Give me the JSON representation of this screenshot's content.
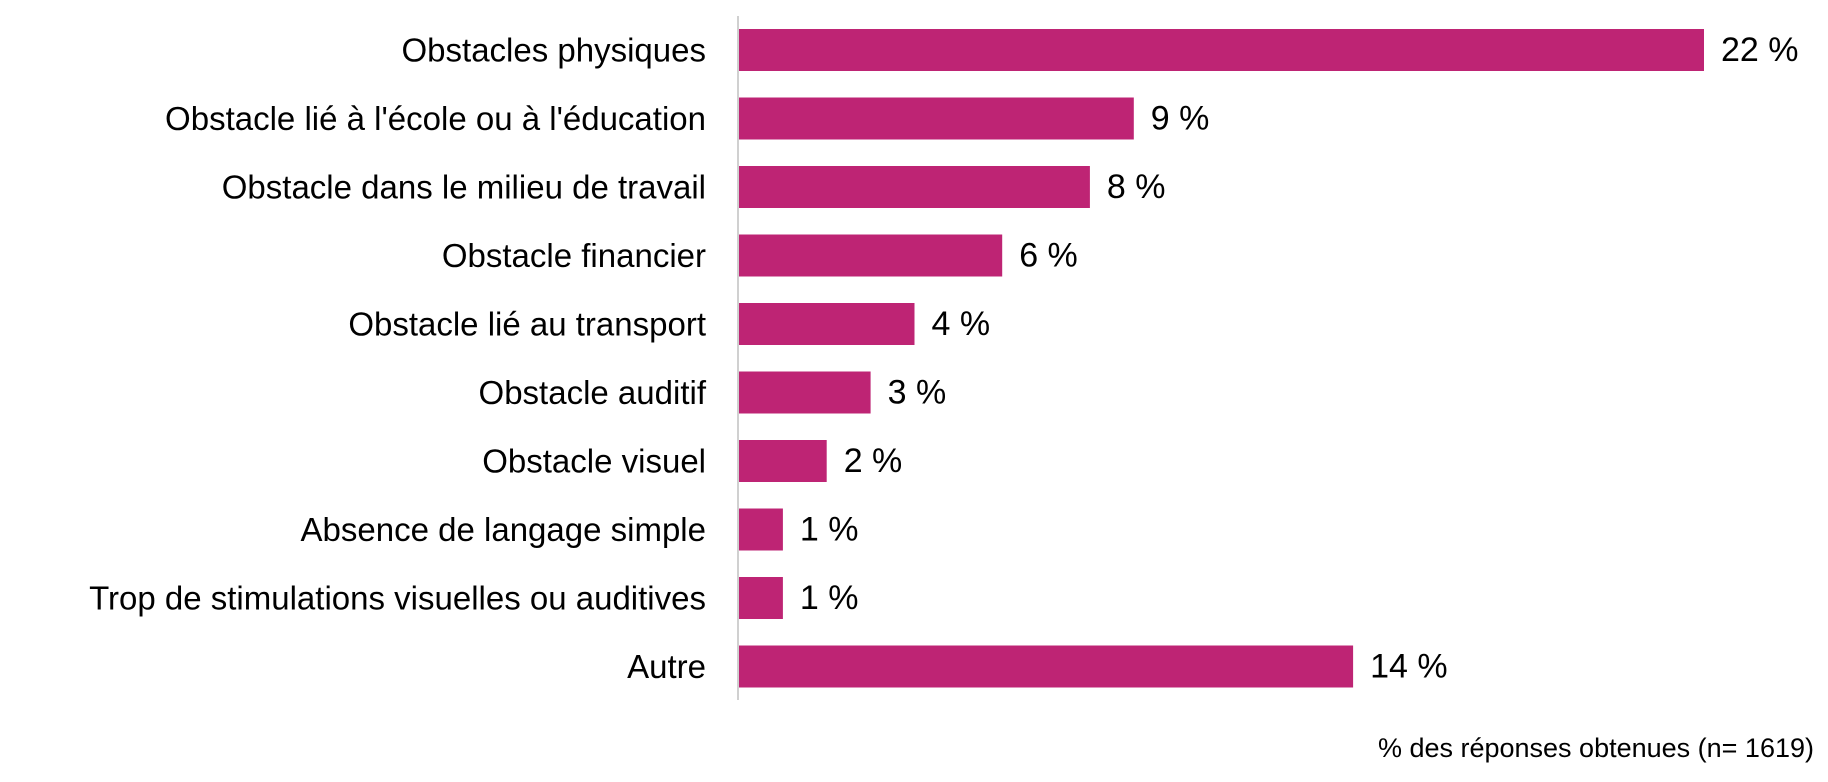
{
  "chart_data": {
    "type": "bar",
    "orientation": "horizontal",
    "categories": [
      "Obstacles physiques",
      "Obstacle lié à l'école ou à l'éducation",
      "Obstacle dans le milieu de travail",
      "Obstacle financier",
      "Obstacle lié au transport",
      "Obstacle auditif",
      "Obstacle visuel",
      "Absence de langage simple",
      "Trop de stimulations visuelles ou auditives",
      "Autre"
    ],
    "values": [
      22,
      9,
      8,
      6,
      4,
      3,
      2,
      1,
      1,
      14
    ],
    "value_labels": [
      "22 %",
      "9 %",
      "8 %",
      "6 %",
      "4 %",
      "3 %",
      "2 %",
      "1 %",
      "1 %",
      "14 %"
    ],
    "xlabel": "% des réponses obtenues (n= 1619)",
    "xlim": [
      0,
      22
    ],
    "grid": false,
    "legend": "none",
    "colors": {
      "bar": "#BE2474",
      "axis": "#D0D0D0",
      "text": "#000000"
    }
  }
}
